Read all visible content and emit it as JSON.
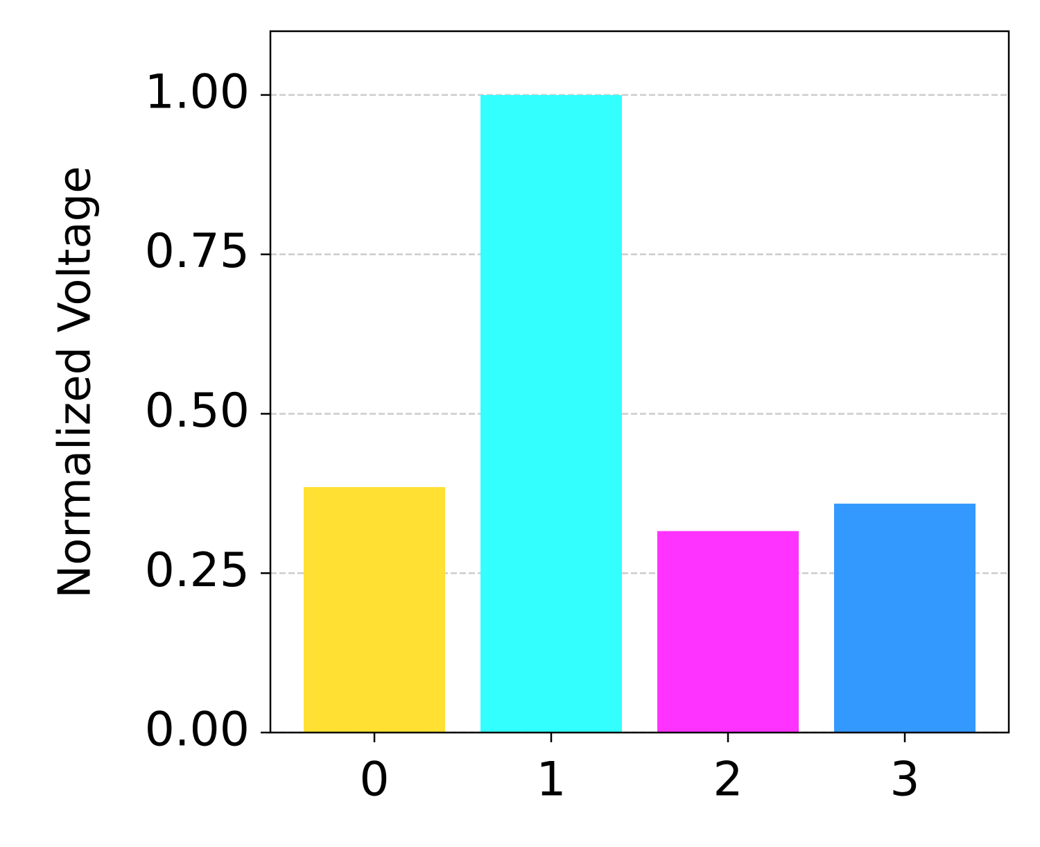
{
  "chart_data": {
    "type": "bar",
    "y_label": "Normalized Voltage",
    "categories": [
      "0",
      "1",
      "2",
      "3"
    ],
    "values": [
      0.385,
      1.0,
      0.316,
      0.359
    ],
    "colors": [
      "#ffe033",
      "#33ffff",
      "#ff33ff",
      "#3399ff"
    ],
    "ylim": [
      0,
      1.1
    ],
    "yticks": [
      {
        "value": 0,
        "label": "0.00"
      },
      {
        "value": 0.25,
        "label": "0.25"
      },
      {
        "value": 0.5,
        "label": "0.50"
      },
      {
        "value": 0.75,
        "label": "0.75"
      },
      {
        "value": 1,
        "label": "1.00"
      }
    ],
    "grid": true
  }
}
